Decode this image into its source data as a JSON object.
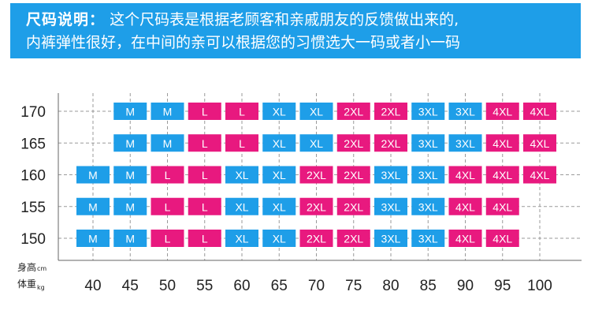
{
  "banner": {
    "lead": "尺码说明：",
    "line1": "这个尺码表是根据老顾客和亲戚朋友的反馈做出来的,",
    "line2": "内裤弹性很好，在中间的亲可以根据您的习惯选大一码或者小一码"
  },
  "colors": {
    "banner_bg": "#1e9ee8",
    "size_blue": "#1e9ee8",
    "size_magenta": "#e8197f",
    "grid": "#9a9a9a",
    "axis_text": "#222222"
  },
  "chart_data": {
    "type": "table",
    "title": "",
    "xlabel": "体重",
    "xlabel_unit": "kg",
    "ylabel": "身高",
    "ylabel_unit": "cm",
    "x": [
      40,
      45,
      50,
      55,
      60,
      65,
      70,
      75,
      80,
      85,
      90,
      95,
      100
    ],
    "x_tick_labels": [
      "40",
      "45",
      "50",
      "55",
      "60",
      "65",
      "70",
      "75",
      "80",
      "85",
      "90",
      "95",
      "100"
    ],
    "y": [
      170,
      165,
      160,
      155,
      150
    ],
    "y_tick_labels": [
      "170",
      "165",
      "160",
      "155",
      "150"
    ],
    "grid": true,
    "cells": [
      {
        "height": 170,
        "weight": 45,
        "size": "M",
        "color": "blue"
      },
      {
        "height": 170,
        "weight": 50,
        "size": "M",
        "color": "blue"
      },
      {
        "height": 170,
        "weight": 55,
        "size": "L",
        "color": "magenta"
      },
      {
        "height": 170,
        "weight": 60,
        "size": "L",
        "color": "magenta"
      },
      {
        "height": 170,
        "weight": 65,
        "size": "XL",
        "color": "blue"
      },
      {
        "height": 170,
        "weight": 70,
        "size": "XL",
        "color": "blue"
      },
      {
        "height": 170,
        "weight": 75,
        "size": "2XL",
        "color": "magenta"
      },
      {
        "height": 170,
        "weight": 80,
        "size": "2XL",
        "color": "magenta"
      },
      {
        "height": 170,
        "weight": 85,
        "size": "3XL",
        "color": "blue"
      },
      {
        "height": 170,
        "weight": 90,
        "size": "3XL",
        "color": "blue"
      },
      {
        "height": 170,
        "weight": 95,
        "size": "4XL",
        "color": "magenta"
      },
      {
        "height": 170,
        "weight": 100,
        "size": "4XL",
        "color": "magenta"
      },
      {
        "height": 165,
        "weight": 45,
        "size": "M",
        "color": "blue"
      },
      {
        "height": 165,
        "weight": 50,
        "size": "M",
        "color": "blue"
      },
      {
        "height": 165,
        "weight": 55,
        "size": "L",
        "color": "magenta"
      },
      {
        "height": 165,
        "weight": 60,
        "size": "L",
        "color": "magenta"
      },
      {
        "height": 165,
        "weight": 65,
        "size": "XL",
        "color": "blue"
      },
      {
        "height": 165,
        "weight": 70,
        "size": "XL",
        "color": "blue"
      },
      {
        "height": 165,
        "weight": 75,
        "size": "2XL",
        "color": "magenta"
      },
      {
        "height": 165,
        "weight": 80,
        "size": "2XL",
        "color": "magenta"
      },
      {
        "height": 165,
        "weight": 85,
        "size": "3XL",
        "color": "blue"
      },
      {
        "height": 165,
        "weight": 90,
        "size": "3XL",
        "color": "blue"
      },
      {
        "height": 165,
        "weight": 95,
        "size": "4XL",
        "color": "magenta"
      },
      {
        "height": 165,
        "weight": 100,
        "size": "4XL",
        "color": "magenta"
      },
      {
        "height": 160,
        "weight": 40,
        "size": "M",
        "color": "blue"
      },
      {
        "height": 160,
        "weight": 45,
        "size": "M",
        "color": "blue"
      },
      {
        "height": 160,
        "weight": 50,
        "size": "L",
        "color": "magenta"
      },
      {
        "height": 160,
        "weight": 55,
        "size": "L",
        "color": "magenta"
      },
      {
        "height": 160,
        "weight": 60,
        "size": "XL",
        "color": "blue"
      },
      {
        "height": 160,
        "weight": 65,
        "size": "XL",
        "color": "blue"
      },
      {
        "height": 160,
        "weight": 70,
        "size": "2XL",
        "color": "magenta"
      },
      {
        "height": 160,
        "weight": 75,
        "size": "2XL",
        "color": "magenta"
      },
      {
        "height": 160,
        "weight": 80,
        "size": "3XL",
        "color": "blue"
      },
      {
        "height": 160,
        "weight": 85,
        "size": "3XL",
        "color": "blue"
      },
      {
        "height": 160,
        "weight": 90,
        "size": "4XL",
        "color": "magenta"
      },
      {
        "height": 160,
        "weight": 95,
        "size": "4XL",
        "color": "magenta"
      },
      {
        "height": 160,
        "weight": 100,
        "size": "4XL",
        "color": "magenta"
      },
      {
        "height": 155,
        "weight": 40,
        "size": "M",
        "color": "blue"
      },
      {
        "height": 155,
        "weight": 45,
        "size": "M",
        "color": "blue"
      },
      {
        "height": 155,
        "weight": 50,
        "size": "L",
        "color": "magenta"
      },
      {
        "height": 155,
        "weight": 55,
        "size": "L",
        "color": "magenta"
      },
      {
        "height": 155,
        "weight": 60,
        "size": "XL",
        "color": "blue"
      },
      {
        "height": 155,
        "weight": 65,
        "size": "XL",
        "color": "blue"
      },
      {
        "height": 155,
        "weight": 70,
        "size": "2XL",
        "color": "magenta"
      },
      {
        "height": 155,
        "weight": 75,
        "size": "2XL",
        "color": "magenta"
      },
      {
        "height": 155,
        "weight": 80,
        "size": "3XL",
        "color": "blue"
      },
      {
        "height": 155,
        "weight": 85,
        "size": "3XL",
        "color": "blue"
      },
      {
        "height": 155,
        "weight": 90,
        "size": "4XL",
        "color": "magenta"
      },
      {
        "height": 155,
        "weight": 95,
        "size": "4XL",
        "color": "magenta"
      },
      {
        "height": 150,
        "weight": 40,
        "size": "M",
        "color": "blue"
      },
      {
        "height": 150,
        "weight": 45,
        "size": "M",
        "color": "blue"
      },
      {
        "height": 150,
        "weight": 50,
        "size": "L",
        "color": "magenta"
      },
      {
        "height": 150,
        "weight": 55,
        "size": "L",
        "color": "magenta"
      },
      {
        "height": 150,
        "weight": 60,
        "size": "XL",
        "color": "blue"
      },
      {
        "height": 150,
        "weight": 65,
        "size": "XL",
        "color": "blue"
      },
      {
        "height": 150,
        "weight": 70,
        "size": "2XL",
        "color": "magenta"
      },
      {
        "height": 150,
        "weight": 75,
        "size": "2XL",
        "color": "magenta"
      },
      {
        "height": 150,
        "weight": 80,
        "size": "3XL",
        "color": "blue"
      },
      {
        "height": 150,
        "weight": 85,
        "size": "3XL",
        "color": "blue"
      },
      {
        "height": 150,
        "weight": 90,
        "size": "4XL",
        "color": "magenta"
      },
      {
        "height": 150,
        "weight": 95,
        "size": "4XL",
        "color": "magenta"
      }
    ]
  }
}
